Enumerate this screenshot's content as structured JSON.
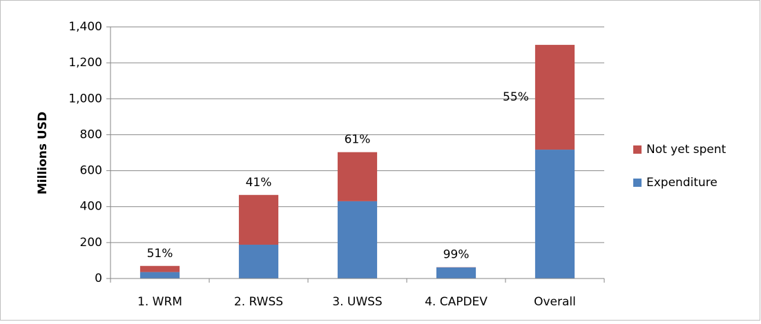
{
  "chart_data": {
    "type": "stacked-bar",
    "y_label": "Millions USD",
    "categories": [
      "1. WRM",
      "2. RWSS",
      "3. UWSS",
      "4. CAPDEV",
      "Overall"
    ],
    "series": [
      {
        "name": "Expenditure",
        "color": "#4f81bd",
        "values": [
          36,
          188,
          430,
          62,
          717
        ]
      },
      {
        "name": "Not yet spent",
        "color": "#c0504d",
        "values": [
          34,
          277,
          273,
          1,
          583
        ]
      }
    ],
    "annotations": [
      "51%",
      "41%",
      "61%",
      "99%",
      "55%"
    ],
    "ylim": [
      0,
      1400
    ],
    "yticks": [
      0,
      200,
      400,
      600,
      800,
      {
        "value": 1000,
        "label": "1,000"
      },
      {
        "value": 1200,
        "label": "1,200"
      },
      {
        "value": 1400,
        "label": "1,400"
      }
    ],
    "grid": true,
    "legend": "right"
  }
}
